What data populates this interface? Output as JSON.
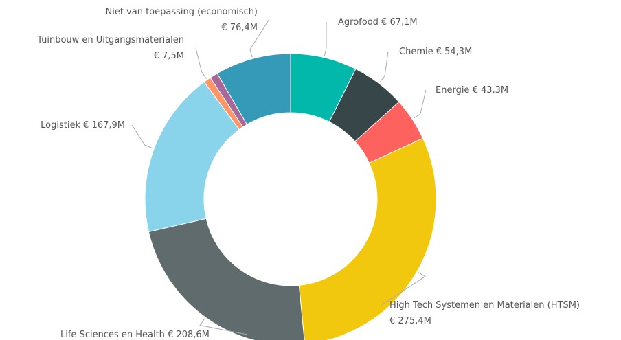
{
  "chart_data": {
    "type": "donut",
    "categories": [
      "Agrofood",
      "Chemie",
      "Energie",
      "High Tech Systemen en Materialen (HTSM)",
      "Life Sciences en Health",
      "Logistiek",
      "Tuinbouw en Uitgangsmaterialen",
      null,
      "Niet van toepassing (economisch)"
    ],
    "values": [
      67.1,
      54.3,
      43.3,
      275.4,
      208.6,
      167.9,
      7.5,
      8,
      76.4
    ],
    "value_labels": [
      "€ 67,1M",
      "€ 54,3M",
      "€ 43,3M",
      "€ 275,4M",
      "€ 208,6M",
      "€ 167,9M",
      "€ 7,5M",
      null,
      "€ 76,4M"
    ],
    "colors": [
      "#01b8aa",
      "#374649",
      "#fd625e",
      "#f2c80f",
      "#5f6b6d",
      "#8ad4eb",
      "#fe9666",
      "#a66999",
      "#3599b8"
    ]
  }
}
